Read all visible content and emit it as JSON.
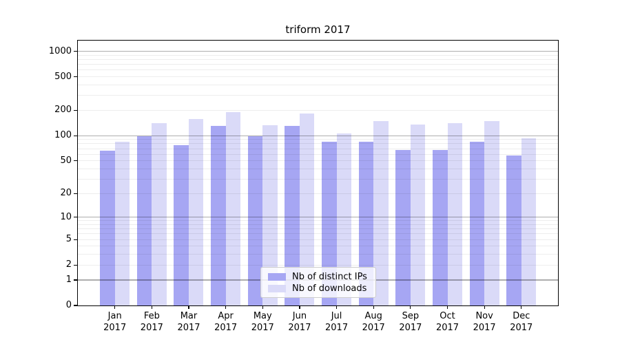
{
  "title": "triform 2017",
  "chart_data": {
    "type": "bar",
    "title": "triform 2017",
    "categories": [
      "Jan",
      "Feb",
      "Mar",
      "Apr",
      "May",
      "Jun",
      "Jul",
      "Aug",
      "Sep",
      "Oct",
      "Nov",
      "Dec"
    ],
    "category_year": "2017",
    "series": [
      {
        "name": "Nb of distinct IPs",
        "color": "#a6a6f3",
        "values": [
          66,
          98,
          77,
          130,
          98,
          131,
          84,
          85,
          68,
          68,
          84,
          58
        ]
      },
      {
        "name": "Nb of downloads",
        "color": "#dadaf8",
        "values": [
          85,
          140,
          157,
          189,
          134,
          182,
          107,
          148,
          135,
          141,
          149,
          93
        ]
      }
    ],
    "yscale": "log1p",
    "ytick_values": [
      0,
      1,
      2,
      5,
      10,
      20,
      50,
      100,
      200,
      500,
      1000
    ],
    "ytick_labels": [
      "0",
      "1",
      "2",
      "5",
      "10",
      "20",
      "50",
      "100",
      "200",
      "500",
      "1000"
    ],
    "ylim": [
      0,
      1300
    ],
    "grid": true,
    "legend_position": "lower center"
  }
}
